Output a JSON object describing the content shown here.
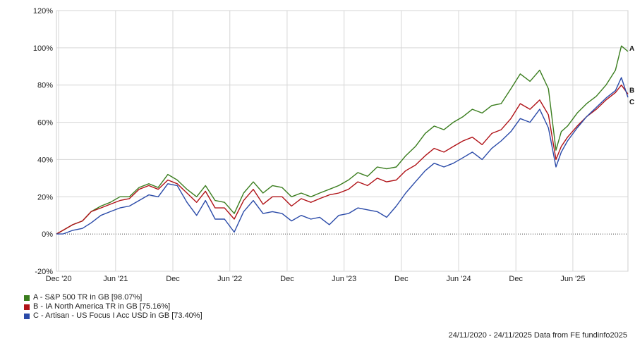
{
  "chart_data": {
    "type": "line",
    "title": "",
    "xlabel": "",
    "ylabel": "",
    "ylim": [
      -20,
      120
    ],
    "y_ticks": [
      -20,
      0,
      20,
      40,
      60,
      80,
      100,
      120
    ],
    "y_tick_labels": [
      "-20%",
      "0%",
      "20%",
      "40%",
      "60%",
      "80%",
      "100%",
      "120%"
    ],
    "x_ticks": [
      {
        "label": "Dec '20",
        "date": "2020-12-01"
      },
      {
        "label": "Jun '21",
        "date": "2021-06-01"
      },
      {
        "label": "Dec",
        "date": "2021-12-01"
      },
      {
        "label": "Jun '22",
        "date": "2022-06-01"
      },
      {
        "label": "Dec",
        "date": "2022-12-01"
      },
      {
        "label": "Jun '23",
        "date": "2023-06-01"
      },
      {
        "label": "Dec",
        "date": "2023-12-01"
      },
      {
        "label": "Jun '24",
        "date": "2024-06-01"
      },
      {
        "label": "Dec",
        "date": "2024-12-01"
      },
      {
        "label": "Jun '25",
        "date": "2025-06-01"
      }
    ],
    "x_range": [
      "2020-11-24",
      "2025-11-24"
    ],
    "grid": true,
    "zero_line": "dotted",
    "series": [
      {
        "name": "A - S&P 500 TR in GB [98.07%]",
        "end_label": "A",
        "color": "#3a7d1e",
        "x": [
          "2020-11-24",
          "2020-12-15",
          "2021-01-15",
          "2021-02-15",
          "2021-03-15",
          "2021-04-15",
          "2021-05-15",
          "2021-06-15",
          "2021-07-15",
          "2021-08-15",
          "2021-09-15",
          "2021-10-15",
          "2021-11-15",
          "2021-12-15",
          "2022-01-15",
          "2022-02-15",
          "2022-03-15",
          "2022-04-15",
          "2022-05-15",
          "2022-06-15",
          "2022-07-15",
          "2022-08-15",
          "2022-09-15",
          "2022-10-15",
          "2022-11-15",
          "2022-12-15",
          "2023-01-15",
          "2023-02-15",
          "2023-03-15",
          "2023-04-15",
          "2023-05-15",
          "2023-06-15",
          "2023-07-15",
          "2023-08-15",
          "2023-09-15",
          "2023-10-15",
          "2023-11-15",
          "2023-12-15",
          "2024-01-15",
          "2024-02-15",
          "2024-03-15",
          "2024-04-15",
          "2024-05-15",
          "2024-06-15",
          "2024-07-15",
          "2024-08-15",
          "2024-09-15",
          "2024-10-15",
          "2024-11-15",
          "2024-12-15",
          "2025-01-15",
          "2025-02-15",
          "2025-03-15",
          "2025-04-08",
          "2025-04-25",
          "2025-05-15",
          "2025-06-15",
          "2025-07-15",
          "2025-08-15",
          "2025-09-15",
          "2025-10-15",
          "2025-11-03",
          "2025-11-24"
        ],
        "values": [
          0,
          2,
          5,
          7,
          12,
          15,
          17,
          20,
          20,
          25,
          27,
          25,
          32,
          29,
          24,
          20,
          26,
          18,
          17,
          11,
          22,
          28,
          22,
          26,
          25,
          20,
          22,
          20,
          22,
          24,
          26,
          29,
          33,
          31,
          36,
          35,
          36,
          42,
          47,
          54,
          58,
          56,
          60,
          63,
          67,
          65,
          69,
          70,
          78,
          86,
          82,
          88,
          78,
          45,
          55,
          58,
          65,
          70,
          74,
          80,
          88,
          101,
          98.07
        ]
      },
      {
        "name": "B - IA North America TR in GB [75.16%]",
        "end_label": "B",
        "color": "#b01217",
        "x": [
          "2020-11-24",
          "2020-12-15",
          "2021-01-15",
          "2021-02-15",
          "2021-03-15",
          "2021-04-15",
          "2021-05-15",
          "2021-06-15",
          "2021-07-15",
          "2021-08-15",
          "2021-09-15",
          "2021-10-15",
          "2021-11-15",
          "2021-12-15",
          "2022-01-15",
          "2022-02-15",
          "2022-03-15",
          "2022-04-15",
          "2022-05-15",
          "2022-06-15",
          "2022-07-15",
          "2022-08-15",
          "2022-09-15",
          "2022-10-15",
          "2022-11-15",
          "2022-12-15",
          "2023-01-15",
          "2023-02-15",
          "2023-03-15",
          "2023-04-15",
          "2023-05-15",
          "2023-06-15",
          "2023-07-15",
          "2023-08-15",
          "2023-09-15",
          "2023-10-15",
          "2023-11-15",
          "2023-12-15",
          "2024-01-15",
          "2024-02-15",
          "2024-03-15",
          "2024-04-15",
          "2024-05-15",
          "2024-06-15",
          "2024-07-15",
          "2024-08-15",
          "2024-09-15",
          "2024-10-15",
          "2024-11-15",
          "2024-12-15",
          "2025-01-15",
          "2025-02-15",
          "2025-03-15",
          "2025-04-08",
          "2025-04-25",
          "2025-05-15",
          "2025-06-15",
          "2025-07-15",
          "2025-08-15",
          "2025-09-15",
          "2025-10-15",
          "2025-11-03",
          "2025-11-24"
        ],
        "values": [
          0,
          2,
          5,
          7,
          12,
          14,
          16,
          18,
          19,
          24,
          26,
          24,
          29,
          27,
          22,
          17,
          23,
          14,
          14,
          8,
          18,
          24,
          16,
          20,
          20,
          15,
          19,
          17,
          19,
          21,
          22,
          24,
          28,
          26,
          30,
          28,
          29,
          34,
          37,
          42,
          46,
          44,
          47,
          50,
          52,
          48,
          54,
          56,
          62,
          70,
          67,
          72,
          64,
          40,
          47,
          52,
          58,
          63,
          67,
          72,
          76,
          80,
          75.16
        ]
      },
      {
        "name": "C - Artisan - US Focus I Acc USD in GB [73.40%]",
        "end_label": "C",
        "color": "#2a4aa8",
        "x": [
          "2020-11-24",
          "2020-12-15",
          "2021-01-15",
          "2021-02-15",
          "2021-03-15",
          "2021-04-15",
          "2021-05-15",
          "2021-06-15",
          "2021-07-15",
          "2021-08-15",
          "2021-09-15",
          "2021-10-15",
          "2021-11-15",
          "2021-12-15",
          "2022-01-15",
          "2022-02-15",
          "2022-03-15",
          "2022-04-15",
          "2022-05-15",
          "2022-06-15",
          "2022-07-15",
          "2022-08-15",
          "2022-09-15",
          "2022-10-15",
          "2022-11-15",
          "2022-12-15",
          "2023-01-15",
          "2023-02-15",
          "2023-03-15",
          "2023-04-15",
          "2023-05-15",
          "2023-06-15",
          "2023-07-15",
          "2023-08-15",
          "2023-09-15",
          "2023-10-15",
          "2023-11-15",
          "2023-12-15",
          "2024-01-15",
          "2024-02-15",
          "2024-03-15",
          "2024-04-15",
          "2024-05-15",
          "2024-06-15",
          "2024-07-15",
          "2024-08-15",
          "2024-09-15",
          "2024-10-15",
          "2024-11-15",
          "2024-12-15",
          "2025-01-15",
          "2025-02-15",
          "2025-03-15",
          "2025-04-08",
          "2025-04-25",
          "2025-05-15",
          "2025-06-15",
          "2025-07-15",
          "2025-08-15",
          "2025-09-15",
          "2025-10-15",
          "2025-11-03",
          "2025-11-24"
        ],
        "values": [
          0,
          0,
          2,
          3,
          6,
          10,
          12,
          14,
          15,
          18,
          21,
          20,
          27,
          26,
          17,
          10,
          18,
          8,
          8,
          1,
          12,
          18,
          11,
          12,
          11,
          7,
          10,
          8,
          9,
          5,
          10,
          11,
          14,
          13,
          12,
          9,
          15,
          22,
          28,
          34,
          38,
          36,
          38,
          41,
          44,
          40,
          46,
          50,
          55,
          62,
          60,
          67,
          57,
          36,
          44,
          50,
          57,
          63,
          68,
          73,
          77,
          84,
          73.4
        ]
      }
    ],
    "legend": {
      "placement": "bottom-left",
      "entries": [
        "A - S&P 500 TR in GB [98.07%]",
        "B - IA North America TR in GB [75.16%]",
        "C - Artisan - US Focus I Acc USD in GB [73.40%]"
      ]
    },
    "footer": "24/11/2020 - 24/11/2025 Data from FE fundinfo2025"
  }
}
